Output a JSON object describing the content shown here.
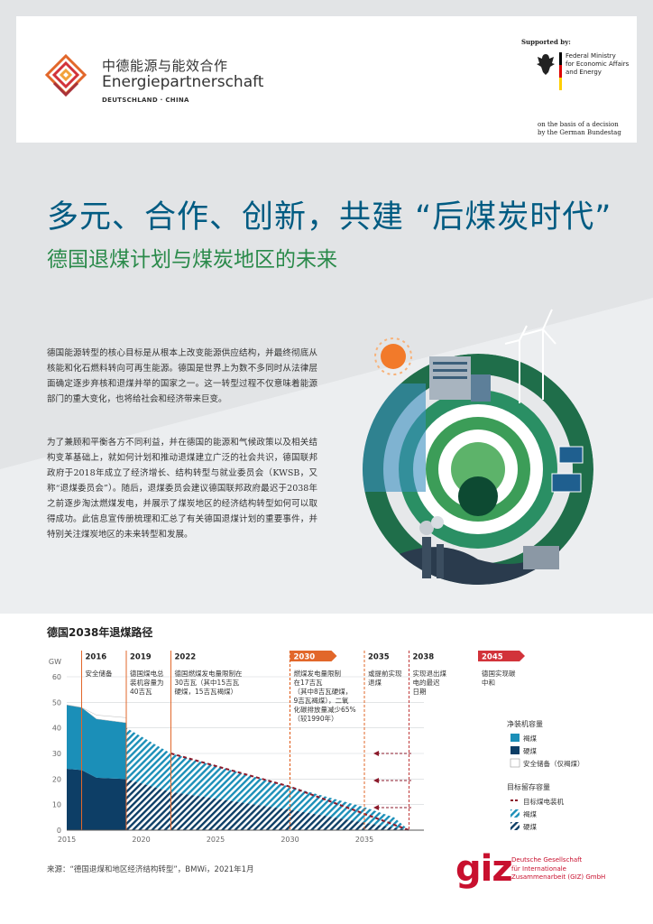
{
  "header": {
    "logo_cn": "中德能源与能效合作",
    "logo_de": "Energiepartnerschaft",
    "logo_sub": "DEUTSCHLAND · CHINA",
    "supported_by": "Supported by:",
    "ministry": [
      "Federal Ministry",
      "for Economic Affairs",
      "and Energy"
    ],
    "decision": [
      "on the basis of a decision",
      "by the German Bundestag"
    ]
  },
  "title": "多元、合作、创新，共建 “后煤炭时代”",
  "subtitle": "德国退煤计划与煤炭地区的未来",
  "paragraphs": [
    "德国能源转型的核心目标是从根本上改变能源供应结构，并最终彻底从核能和化石燃料转向可再生能源。德国是世界上为数不多同时从法律层面确定逐步弃核和退煤并举的国家之一。这一转型过程不仅意味着能源部门的重大变化，也将给社会和经济带来巨变。",
    "为了兼顾和平衡各方不同利益，并在德国的能源和气候政策以及相关结构变革基础上，就如何计划和推动退煤建立广泛的社会共识，德国联邦政府于2018年成立了经济增长、结构转型与就业委员会（KWSB，又称“退煤委员会”）。随后，退煤委员会建议德国联邦政府最迟于2038年之前逐步淘汰燃煤发电，并展示了煤炭地区的经济结构转型如何可以取得成功。此信息宣传册梳理和汇总了有关德国退煤计划的重要事件，并特别关注煤炭地区的未来转型和发展。"
  ],
  "chart_title": "德国2038年退煤路径",
  "chart_data": {
    "type": "area",
    "ylabel": "GW",
    "xlim": [
      2015,
      2039
    ],
    "ylim": [
      0,
      60
    ],
    "x_ticks": [
      2015,
      2020,
      2025,
      2030,
      2035
    ],
    "y_ticks": [
      0,
      10,
      20,
      30,
      40,
      50,
      60
    ],
    "installed": {
      "x": [
        2015,
        2016,
        2017,
        2019
      ],
      "lignite": [
        25,
        24.5,
        23,
        22
      ],
      "hard_coal": [
        24,
        23.5,
        20.5,
        20
      ],
      "security_reserve": [
        0,
        0,
        1.5,
        2
      ]
    },
    "planned": {
      "x": [
        2019,
        2022,
        2030,
        2035,
        2037,
        2038
      ],
      "lignite": [
        20,
        15,
        9,
        6,
        4,
        0
      ],
      "hard_coal": [
        20,
        15,
        8,
        3,
        1,
        0
      ]
    },
    "target_line": {
      "x": [
        2022,
        2030,
        2038
      ],
      "y": [
        30,
        17,
        0
      ]
    },
    "milestones": [
      {
        "year": "2016",
        "x": 2016,
        "text": [
          "安全储备"
        ],
        "highlight": false
      },
      {
        "year": "2019",
        "x": 2019,
        "text": [
          "德国煤电总",
          "装机容量为",
          "40吉瓦"
        ],
        "highlight": false
      },
      {
        "year": "2022",
        "x": 2022,
        "text": [
          "德国燃煤发电量限制在",
          "30吉瓦（其中15吉瓦",
          "硬煤，15吉瓦褐煤）"
        ],
        "highlight": false
      },
      {
        "year": "2030",
        "x": 2030,
        "text": [
          "燃煤发电量限制",
          "在17吉瓦",
          "（其中8吉瓦硬煤，",
          "9吉瓦褐煤），二氧",
          "化碳排放量减少65%",
          "（较1990年）"
        ],
        "highlight": true
      },
      {
        "year": "2035",
        "x": 2035,
        "text": [
          "或提前实现",
          "退煤"
        ],
        "highlight": false
      },
      {
        "year": "2038",
        "x": 2038,
        "text": [
          "实现退出煤",
          "电的最迟",
          "日期"
        ],
        "highlight": false
      },
      {
        "year": "2045",
        "x": null,
        "text": [
          "德国实现碳",
          "中和"
        ],
        "highlight": "red"
      }
    ],
    "legend": {
      "installed_title": "净装机容量",
      "installed_items": [
        "褐煤",
        "硬煤",
        "安全储备（仅褐煤）"
      ],
      "remaining_title": "目标留存容量",
      "remaining_items": [
        "目标煤电装机",
        "褐煤",
        "硬煤"
      ]
    },
    "colors": {
      "lignite": "#1b8fb8",
      "hard_coal": "#0d3e66",
      "reserve": "#ffffff",
      "target": "#8b1a2b",
      "milestone": "#e2672a",
      "red": "#d2333a"
    }
  },
  "source": "来源：“德国退煤和地区经济结构转型”，BMWi，2021年1月",
  "giz": {
    "logo": "giz",
    "text": [
      "Deutsche Gesellschaft",
      "für Internationale",
      "Zusammenarbeit (GIZ) GmbH"
    ]
  }
}
